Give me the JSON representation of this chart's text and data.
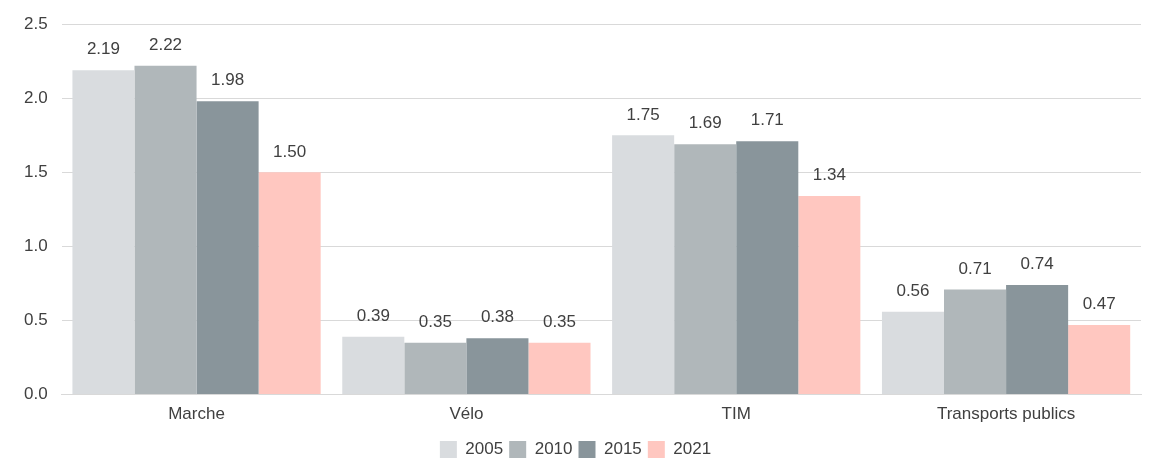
{
  "chart_data": {
    "type": "bar",
    "categories": [
      "Marche",
      "Vélo",
      "TIM",
      "Transports publics"
    ],
    "series": [
      {
        "name": "2005",
        "color": "#d9dcdf",
        "values": [
          2.19,
          0.39,
          1.75,
          0.56
        ],
        "value_labels": [
          "2.19",
          "0.39",
          "1.75",
          "0.56"
        ]
      },
      {
        "name": "2010",
        "color": "#b0b7ba",
        "values": [
          2.22,
          0.35,
          1.69,
          0.71
        ],
        "value_labels": [
          "2.22",
          "0.35",
          "1.69",
          "0.71"
        ]
      },
      {
        "name": "2015",
        "color": "#89959b",
        "values": [
          1.98,
          0.38,
          1.71,
          0.74
        ],
        "value_labels": [
          "1.98",
          "0.38",
          "1.71",
          "0.74"
        ]
      },
      {
        "name": "2021",
        "color": "#ffc7c0",
        "values": [
          1.5,
          0.35,
          1.34,
          0.47
        ],
        "value_labels": [
          "1.50",
          "0.35",
          "1.34",
          "0.47"
        ]
      }
    ],
    "ylim": [
      0,
      2.5
    ],
    "yticks": [
      {
        "value": 0,
        "label": "0.0"
      },
      {
        "value": 0.5,
        "label": "0.5"
      },
      {
        "value": 1,
        "label": "1.0"
      },
      {
        "value": 1.5,
        "label": "1.5"
      },
      {
        "value": 2,
        "label": "2.0"
      },
      {
        "value": 2.5,
        "label": "2.5"
      }
    ],
    "grid": "y",
    "legend": "bottom"
  }
}
